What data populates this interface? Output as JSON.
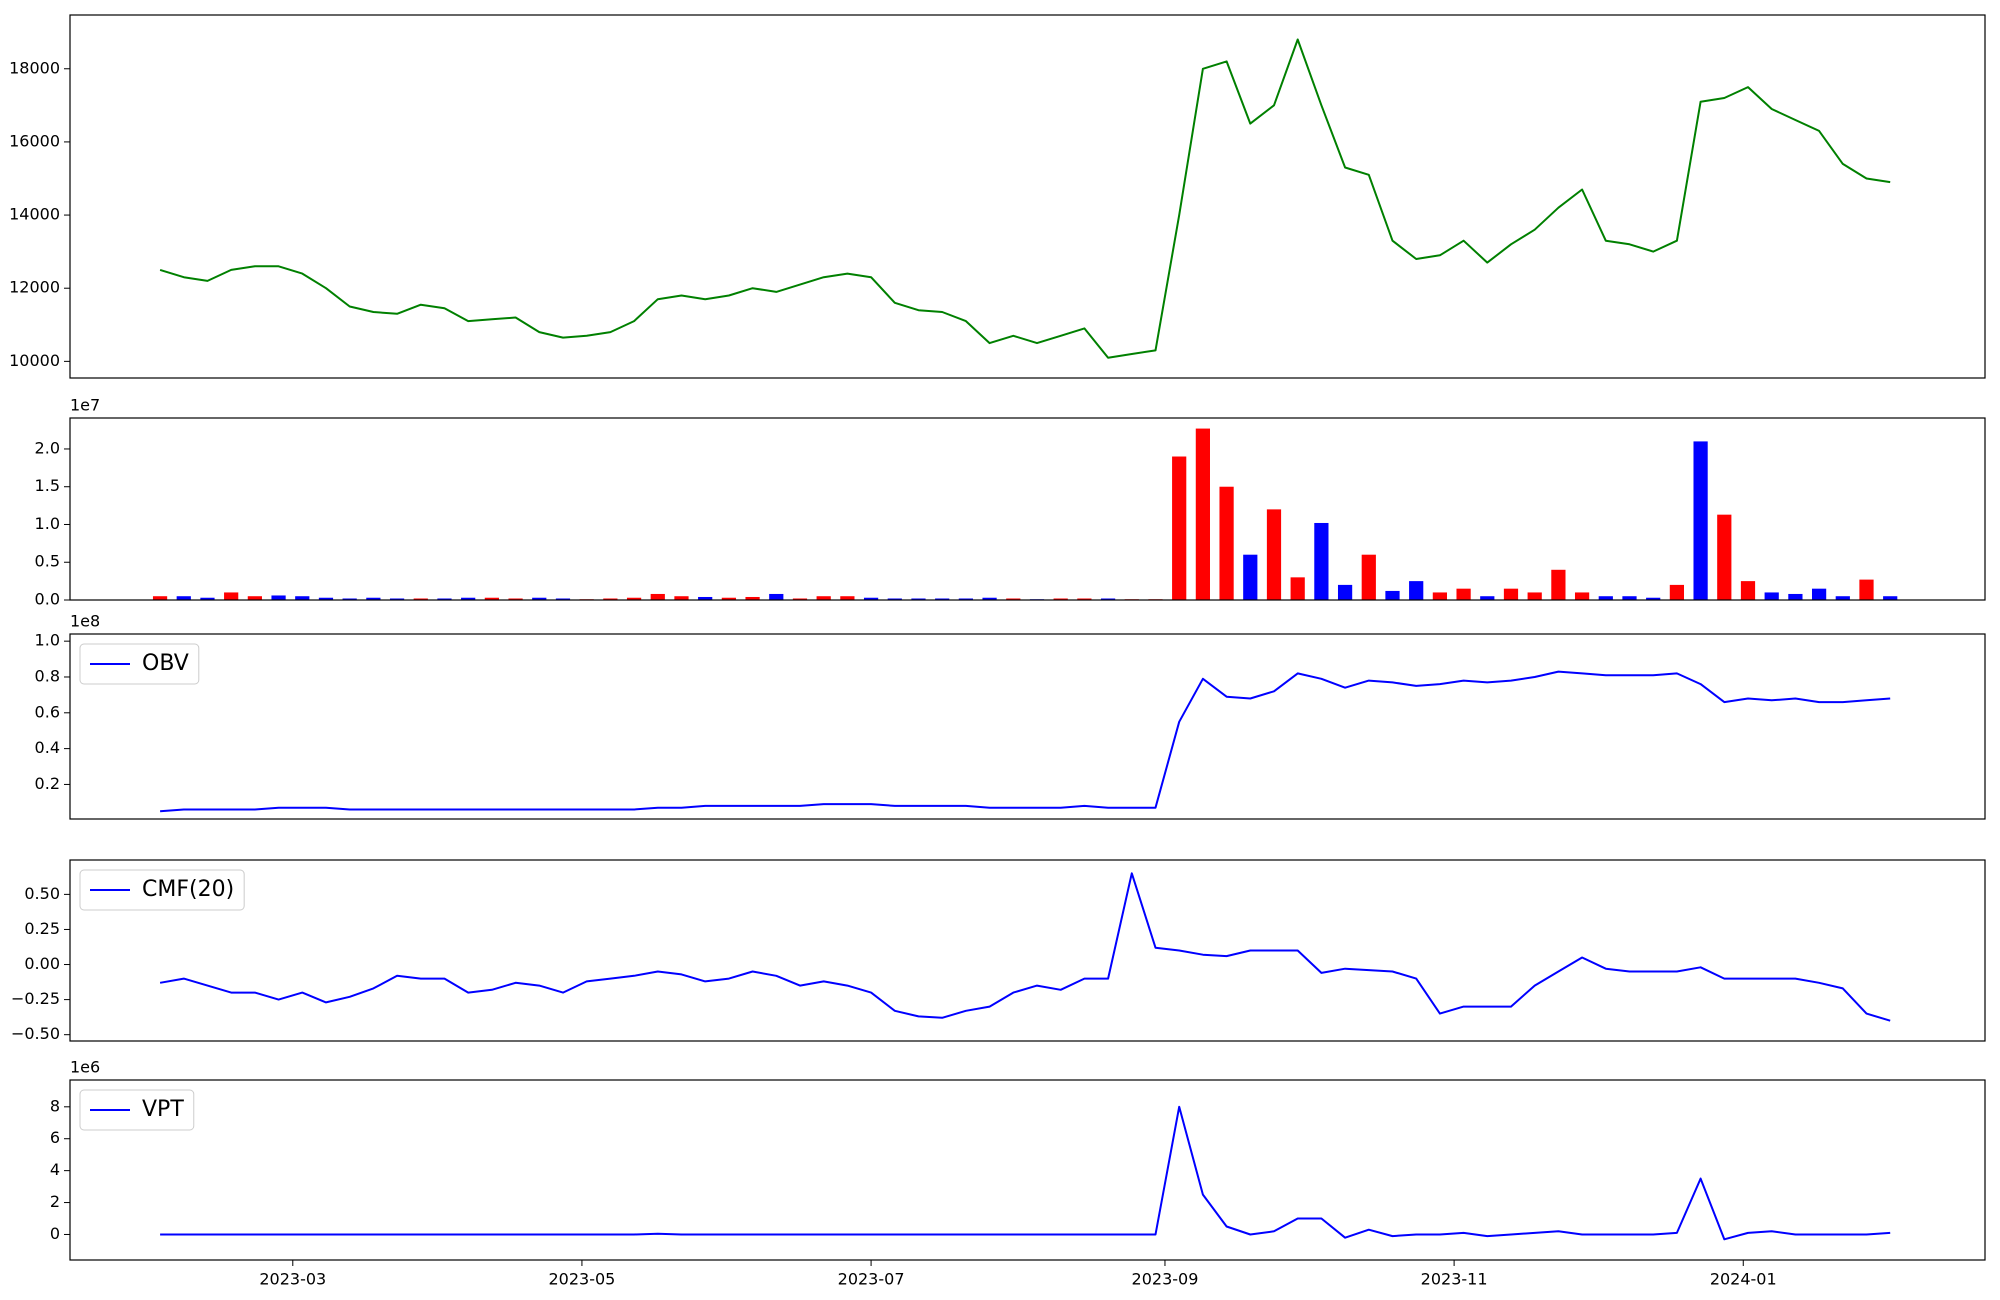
{
  "chart_data": [
    {
      "type": "line",
      "xlim": [
        19370,
        19774
      ],
      "ylim": [
        9545,
        19470
      ],
      "yticks": [
        10000,
        12000,
        14000,
        16000,
        18000
      ],
      "x": [
        19389,
        19394,
        19399,
        19404,
        19409,
        19414,
        19419,
        19424,
        19429,
        19434,
        19439,
        19444,
        19449,
        19454,
        19459,
        19464,
        19469,
        19474,
        19479,
        19484,
        19489,
        19494,
        19499,
        19504,
        19509,
        19514,
        19519,
        19524,
        19529,
        19534,
        19539,
        19544,
        19549,
        19554,
        19559,
        19564,
        19569,
        19574,
        19579,
        19584,
        19589,
        19594,
        19599,
        19604,
        19609,
        19614,
        19619,
        19624,
        19629,
        19634,
        19639,
        19644,
        19649,
        19654,
        19659,
        19664,
        19669,
        19674,
        19679,
        19684,
        19689,
        19694,
        19699,
        19704,
        19709,
        19714,
        19719,
        19724,
        19729,
        19734,
        19739,
        19744,
        19749,
        19754
      ],
      "series": [
        {
          "color": "#008000",
          "values": [
            12500,
            12300,
            12200,
            12500,
            12600,
            12600,
            12400,
            12000,
            11500,
            11350,
            11300,
            11550,
            11450,
            11100,
            11150,
            11200,
            10800,
            10650,
            10700,
            10800,
            11100,
            11700,
            11800,
            11700,
            11800,
            12000,
            11900,
            12100,
            12300,
            12400,
            12300,
            11600,
            11400,
            11350,
            11100,
            10500,
            10700,
            10500,
            10700,
            10900,
            10100,
            10200,
            10300,
            14000,
            18000,
            18200,
            16500,
            17000,
            18800,
            17000,
            15300,
            15100,
            13300,
            12800,
            12900,
            13300,
            12700,
            13200,
            13600,
            14200,
            14700,
            13300,
            13200,
            13000,
            13300,
            17100,
            17200,
            17500,
            16900,
            16600,
            16300,
            15400,
            15000,
            14900
          ]
        }
      ]
    },
    {
      "type": "bar",
      "xlim": [
        19370,
        19774
      ],
      "ylim": [
        0,
        2.41
      ],
      "y_offset_label": "1e7",
      "yticks": [
        {
          "value": 0,
          "label": "0.0"
        },
        0.5,
        {
          "value": 1,
          "label": "1.0"
        },
        1.5,
        {
          "value": 2,
          "label": "2.0"
        }
      ],
      "x": [
        19389,
        19394,
        19399,
        19404,
        19409,
        19414,
        19419,
        19424,
        19429,
        19434,
        19439,
        19444,
        19449,
        19454,
        19459,
        19464,
        19469,
        19474,
        19479,
        19484,
        19489,
        19494,
        19499,
        19504,
        19509,
        19514,
        19519,
        19524,
        19529,
        19534,
        19539,
        19544,
        19549,
        19554,
        19559,
        19564,
        19569,
        19574,
        19579,
        19584,
        19589,
        19594,
        19599,
        19604,
        19609,
        19614,
        19619,
        19624,
        19629,
        19634,
        19639,
        19644,
        19649,
        19654,
        19659,
        19664,
        19669,
        19674,
        19679,
        19684,
        19689,
        19694,
        19699,
        19704,
        19709,
        19714,
        19719,
        19724,
        19729,
        19734,
        19739,
        19744,
        19749,
        19754
      ],
      "values": [
        0.05,
        0.05,
        0.03,
        0.1,
        0.05,
        0.06,
        0.05,
        0.03,
        0.02,
        0.03,
        0.02,
        0.02,
        0.02,
        0.03,
        0.03,
        0.02,
        0.03,
        0.02,
        0.01,
        0.02,
        0.03,
        0.08,
        0.05,
        0.04,
        0.03,
        0.04,
        0.08,
        0.02,
        0.05,
        0.05,
        0.03,
        0.02,
        0.02,
        0.02,
        0.02,
        0.03,
        0.02,
        0.01,
        0.02,
        0.02,
        0.02,
        0.01,
        0.01,
        1.9,
        2.27,
        1.5,
        0.6,
        1.2,
        0.3,
        1.02,
        0.2,
        0.6,
        0.12,
        0.25,
        0.1,
        0.15,
        0.05,
        0.15,
        0.1,
        0.4,
        0.1,
        0.05,
        0.05,
        0.03,
        0.2,
        2.1,
        1.13,
        0.25,
        0.1,
        0.08,
        0.15,
        0.05,
        0.27,
        0.05
      ],
      "colors": [
        "#ff0000",
        "#0000ff",
        "#0000ff",
        "#ff0000",
        "#ff0000",
        "#0000ff",
        "#0000ff",
        "#0000ff",
        "#0000ff",
        "#0000ff",
        "#0000ff",
        "#ff0000",
        "#0000ff",
        "#0000ff",
        "#ff0000",
        "#ff0000",
        "#0000ff",
        "#0000ff",
        "#ff0000",
        "#ff0000",
        "#ff0000",
        "#ff0000",
        "#ff0000",
        "#0000ff",
        "#ff0000",
        "#ff0000",
        "#0000ff",
        "#ff0000",
        "#ff0000",
        "#ff0000",
        "#0000ff",
        "#0000ff",
        "#0000ff",
        "#0000ff",
        "#0000ff",
        "#0000ff",
        "#ff0000",
        "#0000ff",
        "#ff0000",
        "#ff0000",
        "#0000ff",
        "#ff0000",
        "#ff0000",
        "#ff0000",
        "#ff0000",
        "#ff0000",
        "#0000ff",
        "#ff0000",
        "#ff0000",
        "#0000ff",
        "#0000ff",
        "#ff0000",
        "#0000ff",
        "#0000ff",
        "#ff0000",
        "#ff0000",
        "#0000ff",
        "#ff0000",
        "#ff0000",
        "#ff0000",
        "#ff0000",
        "#0000ff",
        "#0000ff",
        "#0000ff",
        "#ff0000",
        "#0000ff",
        "#ff0000",
        "#ff0000",
        "#0000ff",
        "#0000ff",
        "#0000ff",
        "#0000ff",
        "#ff0000",
        "#0000ff"
      ]
    },
    {
      "type": "line",
      "xlim": [
        19370,
        19774
      ],
      "ylim": [
        0.007,
        1.04
      ],
      "y_offset_label": "1e8",
      "legend": "upper left",
      "yticks": [
        0.2,
        0.4,
        0.6,
        0.8,
        {
          "value": 1,
          "label": "1.0"
        }
      ],
      "x": [
        19389,
        19394,
        19399,
        19404,
        19409,
        19414,
        19419,
        19424,
        19429,
        19434,
        19439,
        19444,
        19449,
        19454,
        19459,
        19464,
        19469,
        19474,
        19479,
        19484,
        19489,
        19494,
        19499,
        19504,
        19509,
        19514,
        19519,
        19524,
        19529,
        19534,
        19539,
        19544,
        19549,
        19554,
        19559,
        19564,
        19569,
        19574,
        19579,
        19584,
        19589,
        19594,
        19599,
        19604,
        19609,
        19614,
        19619,
        19624,
        19629,
        19634,
        19639,
        19644,
        19649,
        19654,
        19659,
        19664,
        19669,
        19674,
        19679,
        19684,
        19689,
        19694,
        19699,
        19704,
        19709,
        19714,
        19719,
        19724,
        19729,
        19734,
        19739,
        19744,
        19749,
        19754
      ],
      "series": [
        {
          "name": "OBV",
          "color": "#0000ff",
          "values": [
            0.05,
            0.06,
            0.06,
            0.06,
            0.06,
            0.07,
            0.07,
            0.07,
            0.06,
            0.06,
            0.06,
            0.06,
            0.06,
            0.06,
            0.06,
            0.06,
            0.06,
            0.06,
            0.06,
            0.06,
            0.06,
            0.07,
            0.07,
            0.08,
            0.08,
            0.08,
            0.08,
            0.08,
            0.09,
            0.09,
            0.09,
            0.08,
            0.08,
            0.08,
            0.08,
            0.07,
            0.07,
            0.07,
            0.07,
            0.08,
            0.07,
            0.07,
            0.07,
            0.55,
            0.79,
            0.69,
            0.68,
            0.72,
            0.82,
            0.79,
            0.74,
            0.78,
            0.77,
            0.75,
            0.76,
            0.78,
            0.77,
            0.78,
            0.8,
            0.83,
            0.82,
            0.81,
            0.81,
            0.81,
            0.82,
            0.76,
            0.66,
            0.68,
            0.67,
            0.68,
            0.66,
            0.66,
            0.67,
            0.68
          ]
        }
      ]
    },
    {
      "type": "line",
      "xlim": [
        19370,
        19774
      ],
      "ylim": [
        -0.545,
        0.745
      ],
      "legend": "upper left",
      "yticks": [
        {
          "value": -0.5,
          "label": "−0.50"
        },
        {
          "value": -0.25,
          "label": "−0.25"
        },
        {
          "value": 0,
          "label": "0.00"
        },
        {
          "value": 0.25,
          "label": "0.25"
        },
        {
          "value": 0.5,
          "label": "0.50"
        }
      ],
      "x": [
        19389,
        19394,
        19399,
        19404,
        19409,
        19414,
        19419,
        19424,
        19429,
        19434,
        19439,
        19444,
        19449,
        19454,
        19459,
        19464,
        19469,
        19474,
        19479,
        19484,
        19489,
        19494,
        19499,
        19504,
        19509,
        19514,
        19519,
        19524,
        19529,
        19534,
        19539,
        19544,
        19549,
        19554,
        19559,
        19564,
        19569,
        19574,
        19579,
        19584,
        19589,
        19594,
        19599,
        19604,
        19609,
        19614,
        19619,
        19624,
        19629,
        19634,
        19639,
        19644,
        19649,
        19654,
        19659,
        19664,
        19669,
        19674,
        19679,
        19684,
        19689,
        19694,
        19699,
        19704,
        19709,
        19714,
        19719,
        19724,
        19729,
        19734,
        19739,
        19744,
        19749,
        19754
      ],
      "series": [
        {
          "name": "CMF(20)",
          "color": "#0000ff",
          "values": [
            -0.13,
            -0.1,
            -0.15,
            -0.2,
            -0.2,
            -0.25,
            -0.2,
            -0.27,
            -0.23,
            -0.17,
            -0.08,
            -0.1,
            -0.1,
            -0.2,
            -0.18,
            -0.13,
            -0.15,
            -0.2,
            -0.12,
            -0.1,
            -0.08,
            -0.05,
            -0.07,
            -0.12,
            -0.1,
            -0.05,
            -0.08,
            -0.15,
            -0.12,
            -0.15,
            -0.2,
            -0.33,
            -0.37,
            -0.38,
            -0.33,
            -0.3,
            -0.2,
            -0.15,
            -0.18,
            -0.1,
            -0.1,
            0.65,
            0.12,
            0.1,
            0.07,
            0.06,
            0.1,
            0.1,
            0.1,
            -0.06,
            -0.03,
            -0.04,
            -0.05,
            -0.1,
            -0.35,
            -0.3,
            -0.3,
            -0.3,
            -0.15,
            -0.05,
            0.05,
            -0.03,
            -0.05,
            -0.05,
            -0.05,
            -0.02,
            -0.1,
            -0.1,
            -0.1,
            -0.1,
            -0.13,
            -0.17,
            -0.35,
            -0.4
          ]
        }
      ]
    },
    {
      "type": "line",
      "xlim": [
        19370,
        19774
      ],
      "ylim": [
        -1.6,
        9.68
      ],
      "y_offset_label": "1e6",
      "legend": "upper left",
      "yticks": [
        0,
        2,
        4,
        6,
        8
      ],
      "xticks": [
        {
          "value": 19417,
          "label": "2023-03"
        },
        {
          "value": 19478,
          "label": "2023-05"
        },
        {
          "value": 19539,
          "label": "2023-07"
        },
        {
          "value": 19601,
          "label": "2023-09"
        },
        {
          "value": 19662,
          "label": "2023-11"
        },
        {
          "value": 19723,
          "label": "2024-01"
        }
      ],
      "x": [
        19389,
        19394,
        19399,
        19404,
        19409,
        19414,
        19419,
        19424,
        19429,
        19434,
        19439,
        19444,
        19449,
        19454,
        19459,
        19464,
        19469,
        19474,
        19479,
        19484,
        19489,
        19494,
        19499,
        19504,
        19509,
        19514,
        19519,
        19524,
        19529,
        19534,
        19539,
        19544,
        19549,
        19554,
        19559,
        19564,
        19569,
        19574,
        19579,
        19584,
        19589,
        19594,
        19599,
        19604,
        19609,
        19614,
        19619,
        19624,
        19629,
        19634,
        19639,
        19644,
        19649,
        19654,
        19659,
        19664,
        19669,
        19674,
        19679,
        19684,
        19689,
        19694,
        19699,
        19704,
        19709,
        19714,
        19719,
        19724,
        19729,
        19734,
        19739,
        19744,
        19749,
        19754
      ],
      "series": [
        {
          "name": "VPT",
          "color": "#0000ff",
          "values": [
            0,
            0,
            0,
            0,
            0,
            0,
            0,
            0,
            0,
            0,
            0,
            0,
            0,
            0,
            0,
            0,
            0,
            0,
            0,
            0,
            0,
            0.05,
            0,
            0,
            0,
            0,
            0,
            0,
            0,
            0,
            0,
            0,
            0,
            0,
            0,
            0,
            0,
            0,
            0,
            0,
            0,
            0,
            0,
            8,
            2.5,
            0.5,
            0,
            0.2,
            1,
            1,
            -0.2,
            0.3,
            -0.1,
            0,
            0,
            0.1,
            -0.1,
            0,
            0.1,
            0.2,
            0,
            0,
            0,
            0,
            0.1,
            3.5,
            -0.3,
            0.1,
            0.2,
            0,
            0,
            0,
            0,
            0.1
          ]
        }
      ]
    }
  ]
}
